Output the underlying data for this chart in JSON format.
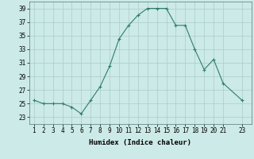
{
  "x": [
    1,
    2,
    3,
    4,
    5,
    6,
    7,
    8,
    9,
    10,
    11,
    12,
    13,
    14,
    15,
    16,
    17,
    18,
    19,
    20,
    21,
    23
  ],
  "y": [
    25.5,
    25.0,
    25.0,
    25.0,
    24.5,
    23.5,
    25.5,
    27.5,
    30.5,
    34.5,
    36.5,
    38.0,
    39.0,
    39.0,
    39.0,
    36.5,
    36.5,
    33.0,
    30.0,
    31.5,
    28.0,
    25.5
  ],
  "line_color": "#2e7d6e",
  "marker": "+",
  "bg_color": "#cceae7",
  "grid_color": "#aaccca",
  "xlabel": "Humidex (Indice chaleur)",
  "ylim": [
    22,
    40
  ],
  "yticks": [
    23,
    25,
    27,
    29,
    31,
    33,
    35,
    37,
    39
  ],
  "xlim": [
    0.5,
    24
  ],
  "xticks": [
    1,
    2,
    3,
    4,
    5,
    6,
    7,
    8,
    9,
    10,
    11,
    12,
    13,
    14,
    15,
    16,
    17,
    18,
    19,
    20,
    21,
    23
  ],
  "xtick_labels": [
    "1",
    "2",
    "3",
    "4",
    "5",
    "6",
    "7",
    "8",
    "9",
    "10",
    "11",
    "12",
    "13",
    "14",
    "15",
    "16",
    "17",
    "18",
    "19",
    "20",
    "21",
    "23"
  ],
  "label_fontsize": 6.5,
  "tick_fontsize": 5.5
}
